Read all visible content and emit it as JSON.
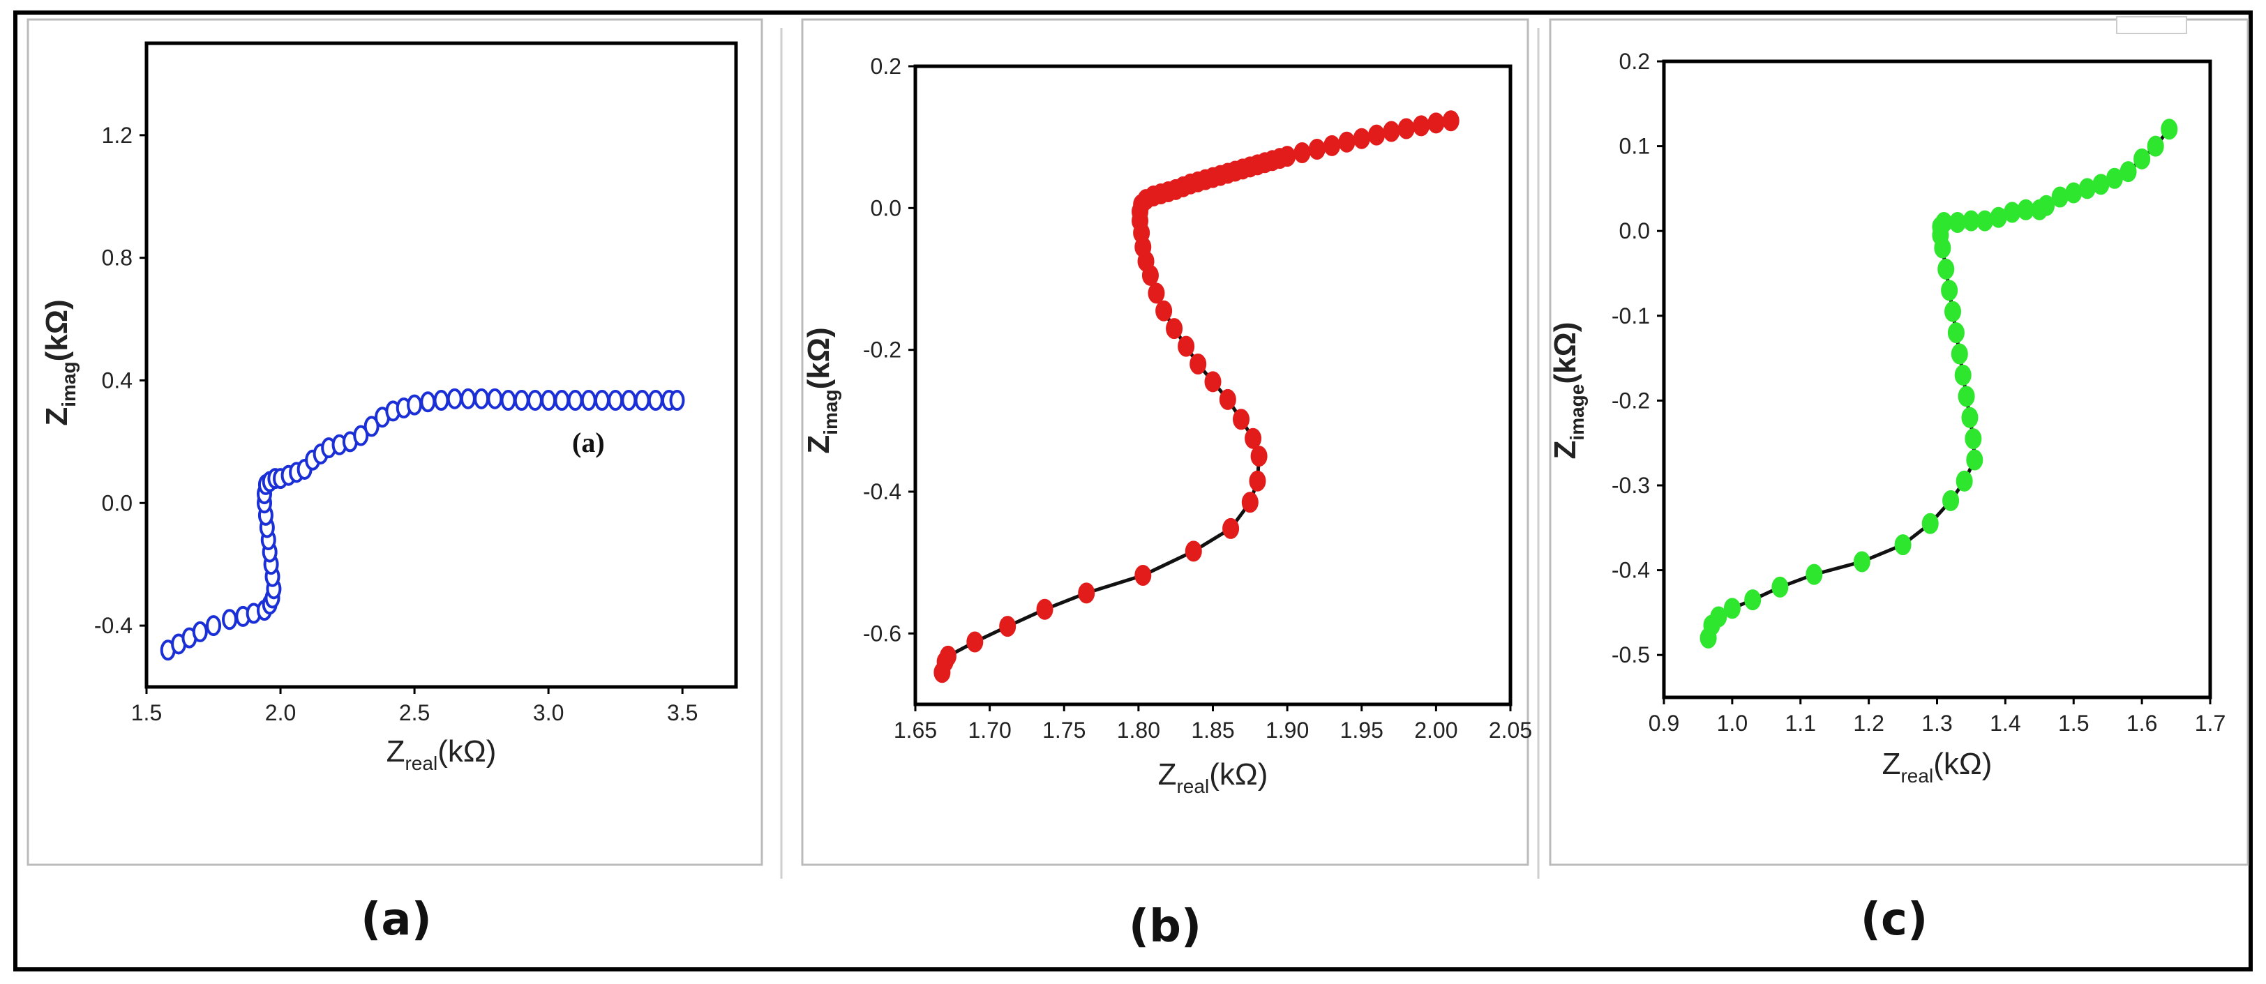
{
  "colors": {
    "a": "#1a2fd6",
    "b": "#e21b1b",
    "c": "#2ee62e",
    "line": "#111111",
    "frame": "#000000"
  },
  "chart_data": [
    {
      "type": "scatter",
      "xlabel": {
        "main": "Z",
        "sub": "real",
        "unit": "(kΩ)"
      },
      "ylabel": {
        "main": "Z",
        "sub": "imag",
        "unit": "(kΩ)"
      },
      "xlim": [
        1.5,
        3.7
      ],
      "ylim": [
        -0.6,
        1.5
      ],
      "xticks": [
        1.5,
        2.0,
        2.5,
        3.0,
        3.5
      ],
      "xtick_labels": [
        "1.5",
        "2.0",
        "2.5",
        "3.0",
        "3.5"
      ],
      "yticks": [
        -0.4,
        0.0,
        0.4,
        0.8,
        1.2
      ],
      "ytick_labels": [
        "-0.4",
        "0.0",
        "0.4",
        "0.8",
        "1.2"
      ],
      "marker": "open",
      "connect": false,
      "annotation": "(a)",
      "caption": "(a)",
      "points": [
        [
          1.58,
          -0.48
        ],
        [
          1.62,
          -0.46
        ],
        [
          1.66,
          -0.44
        ],
        [
          1.7,
          -0.42
        ],
        [
          1.75,
          -0.4
        ],
        [
          1.81,
          -0.38
        ],
        [
          1.86,
          -0.37
        ],
        [
          1.9,
          -0.36
        ],
        [
          1.94,
          -0.35
        ],
        [
          1.96,
          -0.33
        ],
        [
          1.97,
          -0.31
        ],
        [
          1.975,
          -0.28
        ],
        [
          1.97,
          -0.24
        ],
        [
          1.965,
          -0.2
        ],
        [
          1.96,
          -0.16
        ],
        [
          1.955,
          -0.12
        ],
        [
          1.95,
          -0.08
        ],
        [
          1.945,
          -0.04
        ],
        [
          1.94,
          0.0
        ],
        [
          1.94,
          0.03
        ],
        [
          1.945,
          0.06
        ],
        [
          1.96,
          0.07
        ],
        [
          1.98,
          0.08
        ],
        [
          2.0,
          0.08
        ],
        [
          2.03,
          0.09
        ],
        [
          2.06,
          0.1
        ],
        [
          2.09,
          0.11
        ],
        [
          2.12,
          0.14
        ],
        [
          2.15,
          0.16
        ],
        [
          2.18,
          0.18
        ],
        [
          2.22,
          0.19
        ],
        [
          2.26,
          0.2
        ],
        [
          2.3,
          0.22
        ],
        [
          2.34,
          0.25
        ],
        [
          2.38,
          0.28
        ],
        [
          2.42,
          0.3
        ],
        [
          2.46,
          0.31
        ],
        [
          2.5,
          0.32
        ],
        [
          2.55,
          0.33
        ],
        [
          2.6,
          0.335
        ],
        [
          2.65,
          0.34
        ],
        [
          2.7,
          0.34
        ],
        [
          2.75,
          0.34
        ],
        [
          2.8,
          0.34
        ],
        [
          2.85,
          0.335
        ],
        [
          2.9,
          0.335
        ],
        [
          2.95,
          0.335
        ],
        [
          3.0,
          0.335
        ],
        [
          3.05,
          0.335
        ],
        [
          3.1,
          0.335
        ],
        [
          3.15,
          0.335
        ],
        [
          3.2,
          0.335
        ],
        [
          3.25,
          0.335
        ],
        [
          3.3,
          0.335
        ],
        [
          3.35,
          0.335
        ],
        [
          3.4,
          0.335
        ],
        [
          3.45,
          0.335
        ],
        [
          3.48,
          0.335
        ]
      ]
    },
    {
      "type": "line",
      "xlabel": {
        "main": "Z",
        "sub": "real",
        "unit": "(kΩ)"
      },
      "ylabel": {
        "main": "Z",
        "sub": "imag",
        "unit": "(kΩ)"
      },
      "xlim": [
        1.65,
        2.05
      ],
      "ylim": [
        -0.7,
        0.2
      ],
      "xticks": [
        1.65,
        1.7,
        1.75,
        1.8,
        1.85,
        1.9,
        1.95,
        2.0,
        2.05
      ],
      "xtick_labels": [
        "1.65",
        "1.70",
        "1.75",
        "1.80",
        "1.85",
        "1.90",
        "1.95",
        "2.00",
        "2.05"
      ],
      "yticks": [
        -0.6,
        -0.4,
        -0.2,
        0.0,
        0.2
      ],
      "ytick_labels": [
        "-0.6",
        "-0.4",
        "-0.2",
        "0.0",
        "0.2"
      ],
      "marker": "filled",
      "connect": true,
      "caption": "(b)",
      "points": [
        [
          1.668,
          -0.655
        ],
        [
          1.67,
          -0.64
        ],
        [
          1.672,
          -0.632
        ],
        [
          1.69,
          -0.612
        ],
        [
          1.712,
          -0.59
        ],
        [
          1.737,
          -0.566
        ],
        [
          1.765,
          -0.543
        ],
        [
          1.803,
          -0.518
        ],
        [
          1.837,
          -0.484
        ],
        [
          1.862,
          -0.452
        ],
        [
          1.875,
          -0.415
        ],
        [
          1.88,
          -0.385
        ],
        [
          1.881,
          -0.35
        ],
        [
          1.877,
          -0.325
        ],
        [
          1.869,
          -0.298
        ],
        [
          1.86,
          -0.27
        ],
        [
          1.85,
          -0.245
        ],
        [
          1.84,
          -0.22
        ],
        [
          1.832,
          -0.195
        ],
        [
          1.824,
          -0.17
        ],
        [
          1.817,
          -0.145
        ],
        [
          1.812,
          -0.12
        ],
        [
          1.808,
          -0.095
        ],
        [
          1.805,
          -0.075
        ],
        [
          1.803,
          -0.055
        ],
        [
          1.802,
          -0.035
        ],
        [
          1.801,
          -0.018
        ],
        [
          1.801,
          -0.005
        ],
        [
          1.802,
          0.005
        ],
        [
          1.805,
          0.012
        ],
        [
          1.81,
          0.017
        ],
        [
          1.815,
          0.02
        ],
        [
          1.82,
          0.023
        ],
        [
          1.825,
          0.026
        ],
        [
          1.83,
          0.03
        ],
        [
          1.835,
          0.034
        ],
        [
          1.84,
          0.037
        ],
        [
          1.845,
          0.04
        ],
        [
          1.85,
          0.043
        ],
        [
          1.855,
          0.046
        ],
        [
          1.86,
          0.049
        ],
        [
          1.865,
          0.052
        ],
        [
          1.87,
          0.055
        ],
        [
          1.875,
          0.058
        ],
        [
          1.88,
          0.061
        ],
        [
          1.885,
          0.064
        ],
        [
          1.89,
          0.067
        ],
        [
          1.895,
          0.07
        ],
        [
          1.9,
          0.073
        ],
        [
          1.91,
          0.078
        ],
        [
          1.92,
          0.083
        ],
        [
          1.93,
          0.088
        ],
        [
          1.94,
          0.093
        ],
        [
          1.95,
          0.098
        ],
        [
          1.96,
          0.103
        ],
        [
          1.97,
          0.108
        ],
        [
          1.98,
          0.112
        ],
        [
          1.99,
          0.116
        ],
        [
          2.0,
          0.12
        ],
        [
          2.01,
          0.123
        ]
      ]
    },
    {
      "type": "line",
      "xlabel": {
        "main": "Z",
        "sub": "real",
        "unit": "(kΩ)"
      },
      "ylabel": {
        "main": "Z",
        "sub": "image",
        "unit": "(kΩ)"
      },
      "xlim": [
        0.9,
        1.7
      ],
      "ylim": [
        -0.55,
        0.2
      ],
      "xticks": [
        0.9,
        1.0,
        1.1,
        1.2,
        1.3,
        1.4,
        1.5,
        1.6,
        1.7
      ],
      "xtick_labels": [
        "0.9",
        "1.0",
        "1.1",
        "1.2",
        "1.3",
        "1.4",
        "1.5",
        "1.6",
        "1.7"
      ],
      "yticks": [
        -0.5,
        -0.4,
        -0.3,
        -0.2,
        -0.1,
        0.0,
        0.1,
        0.2
      ],
      "ytick_labels": [
        "-0.5",
        "-0.4",
        "-0.3",
        "-0.2",
        "-0.1",
        "0.0",
        "0.1",
        "0.2"
      ],
      "marker": "filled",
      "connect": true,
      "caption": "(c)",
      "points": [
        [
          0.965,
          -0.48
        ],
        [
          0.97,
          -0.465
        ],
        [
          0.98,
          -0.455
        ],
        [
          1.0,
          -0.445
        ],
        [
          1.03,
          -0.435
        ],
        [
          1.07,
          -0.42
        ],
        [
          1.12,
          -0.405
        ],
        [
          1.19,
          -0.39
        ],
        [
          1.25,
          -0.37
        ],
        [
          1.29,
          -0.345
        ],
        [
          1.32,
          -0.318
        ],
        [
          1.34,
          -0.295
        ],
        [
          1.355,
          -0.27
        ],
        [
          1.353,
          -0.245
        ],
        [
          1.348,
          -0.22
        ],
        [
          1.343,
          -0.195
        ],
        [
          1.338,
          -0.17
        ],
        [
          1.333,
          -0.145
        ],
        [
          1.328,
          -0.12
        ],
        [
          1.323,
          -0.095
        ],
        [
          1.318,
          -0.07
        ],
        [
          1.313,
          -0.045
        ],
        [
          1.308,
          -0.02
        ],
        [
          1.305,
          -0.005
        ],
        [
          1.305,
          0.005
        ],
        [
          1.31,
          0.01
        ],
        [
          1.33,
          0.01
        ],
        [
          1.35,
          0.012
        ],
        [
          1.37,
          0.012
        ],
        [
          1.39,
          0.016
        ],
        [
          1.41,
          0.022
        ],
        [
          1.43,
          0.025
        ],
        [
          1.45,
          0.025
        ],
        [
          1.46,
          0.03
        ],
        [
          1.48,
          0.04
        ],
        [
          1.5,
          0.045
        ],
        [
          1.52,
          0.05
        ],
        [
          1.54,
          0.055
        ],
        [
          1.56,
          0.062
        ],
        [
          1.58,
          0.07
        ],
        [
          1.6,
          0.085
        ],
        [
          1.62,
          0.1
        ],
        [
          1.64,
          0.12
        ]
      ]
    }
  ]
}
